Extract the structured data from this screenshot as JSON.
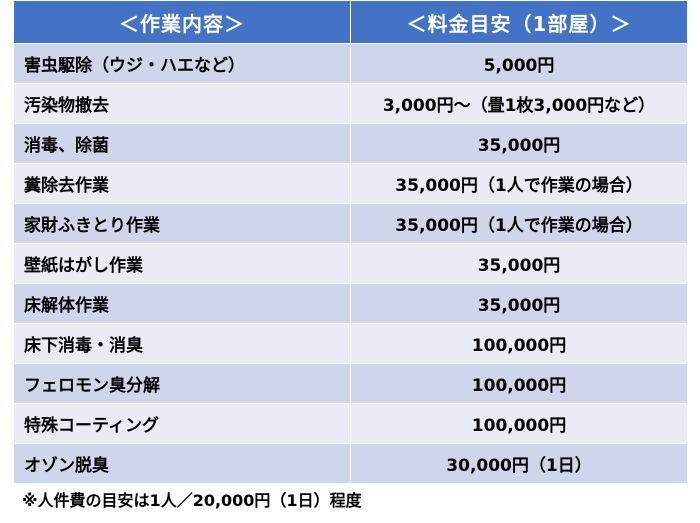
{
  "header": {
    "work_label": "＜作業内容＞",
    "price_label": "＜料金目安（1部屋）＞"
  },
  "rows": [
    {
      "work": "害虫駆除（ウジ・ハエなど）",
      "price": "5,000円"
    },
    {
      "work": "汚染物撤去",
      "price": "3,000円～（畳1枚3,000円など）"
    },
    {
      "work": "消毒、除菌",
      "price": "35,000円"
    },
    {
      "work": "糞除去作業",
      "price": "35,000円（1人で作業の場合）"
    },
    {
      "work": "家財ふきとり作業",
      "price": "35,000円（1人で作業の場合）"
    },
    {
      "work": "壁紙はがし作業",
      "price": "35,000円"
    },
    {
      "work": "床解体作業",
      "price": "35,000円"
    },
    {
      "work": "床下消毒・消臭",
      "price": "100,000円"
    },
    {
      "work": "フェロモン臭分解",
      "price": "100,000円"
    },
    {
      "work": "特殊コーティング",
      "price": "100,000円"
    },
    {
      "work": "オゾン脱臭",
      "price": "30,000円（1日）"
    }
  ],
  "note": "※人件費の目安は1人／20,000円（1日）程度",
  "colors": {
    "header_bg": "#4472c4",
    "row_dark": "#cfd5ea",
    "row_light": "#e9ebf5"
  }
}
